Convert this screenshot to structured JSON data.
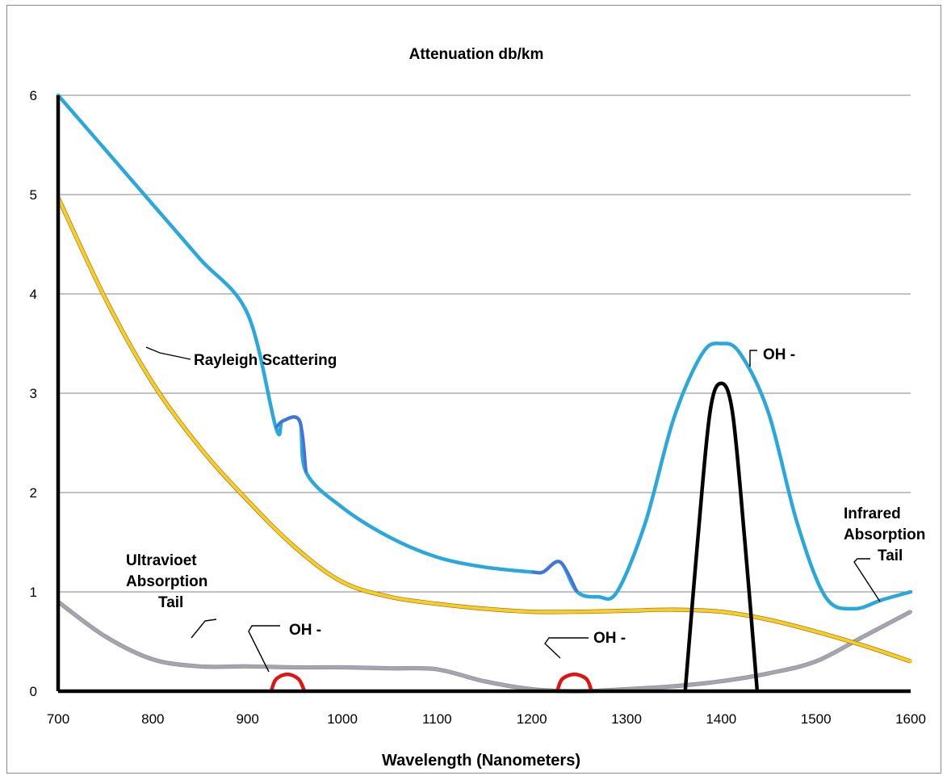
{
  "chart_data": {
    "type": "line",
    "title": "Attenuation db/km",
    "xlabel": "Wavelength (Nanometers)",
    "ylabel": "",
    "xlim": [
      700,
      1600
    ],
    "ylim": [
      0,
      6
    ],
    "x_ticks": [
      700,
      800,
      900,
      1000,
      1100,
      1200,
      1300,
      1400,
      1500,
      1600
    ],
    "y_ticks": [
      0,
      1,
      2,
      3,
      4,
      5,
      6
    ],
    "grid": "horizontal",
    "series": [
      {
        "key": "total",
        "color": "#2aa8dc",
        "points": [
          [
            700,
            6.0
          ],
          [
            750,
            5.45
          ],
          [
            800,
            4.9
          ],
          [
            850,
            4.35
          ],
          [
            900,
            3.8
          ],
          [
            930,
            2.65
          ],
          [
            937,
            2.72
          ],
          [
            955,
            2.72
          ],
          [
            962,
            2.2
          ],
          [
            1000,
            1.85
          ],
          [
            1050,
            1.55
          ],
          [
            1100,
            1.35
          ],
          [
            1150,
            1.25
          ],
          [
            1200,
            1.2
          ],
          [
            1212,
            1.2
          ],
          [
            1230,
            1.3
          ],
          [
            1248,
            1.0
          ],
          [
            1270,
            0.95
          ],
          [
            1290,
            1.0
          ],
          [
            1320,
            1.7
          ],
          [
            1350,
            2.75
          ],
          [
            1380,
            3.4
          ],
          [
            1400,
            3.5
          ],
          [
            1420,
            3.4
          ],
          [
            1450,
            2.8
          ],
          [
            1480,
            1.7
          ],
          [
            1510,
            0.95
          ],
          [
            1540,
            0.83
          ],
          [
            1570,
            0.92
          ],
          [
            1600,
            1.0
          ]
        ]
      },
      {
        "key": "rayleigh",
        "color": "#f2d21c",
        "points": [
          [
            700,
            4.97
          ],
          [
            750,
            3.95
          ],
          [
            800,
            3.1
          ],
          [
            850,
            2.45
          ],
          [
            900,
            1.92
          ],
          [
            950,
            1.45
          ],
          [
            1000,
            1.1
          ],
          [
            1050,
            0.95
          ],
          [
            1100,
            0.88
          ],
          [
            1150,
            0.83
          ],
          [
            1200,
            0.8
          ],
          [
            1250,
            0.8
          ],
          [
            1300,
            0.81
          ],
          [
            1350,
            0.82
          ],
          [
            1400,
            0.8
          ],
          [
            1450,
            0.72
          ],
          [
            1500,
            0.6
          ],
          [
            1550,
            0.46
          ],
          [
            1600,
            0.3
          ]
        ]
      },
      {
        "key": "uv_ir",
        "color": "#a6a6a6",
        "points": [
          [
            700,
            0.9
          ],
          [
            750,
            0.55
          ],
          [
            800,
            0.32
          ],
          [
            850,
            0.25
          ],
          [
            900,
            0.25
          ],
          [
            950,
            0.24
          ],
          [
            1000,
            0.24
          ],
          [
            1050,
            0.23
          ],
          [
            1100,
            0.22
          ],
          [
            1150,
            0.1
          ],
          [
            1200,
            0.02
          ],
          [
            1250,
            0.0
          ],
          [
            1300,
            0.02
          ],
          [
            1350,
            0.05
          ],
          [
            1400,
            0.1
          ],
          [
            1450,
            0.18
          ],
          [
            1500,
            0.3
          ],
          [
            1550,
            0.55
          ],
          [
            1600,
            0.8
          ]
        ]
      },
      {
        "key": "oh_peak_1400",
        "color": "#000000",
        "points": [
          [
            1362,
            0.0
          ],
          [
            1375,
            1.5
          ],
          [
            1388,
            2.8
          ],
          [
            1400,
            3.1
          ],
          [
            1412,
            2.8
          ],
          [
            1425,
            1.5
          ],
          [
            1438,
            0.0
          ]
        ]
      },
      {
        "key": "oh_bump_940",
        "color": "#e01414",
        "points": [
          [
            925,
            0.0
          ],
          [
            930,
            0.12
          ],
          [
            942,
            0.17
          ],
          [
            954,
            0.12
          ],
          [
            960,
            0.0
          ]
        ]
      },
      {
        "key": "oh_bump_1245",
        "color": "#e01414",
        "points": [
          [
            1227,
            0.0
          ],
          [
            1232,
            0.12
          ],
          [
            1245,
            0.17
          ],
          [
            1258,
            0.12
          ],
          [
            1263,
            0.0
          ]
        ]
      }
    ],
    "annotations": [
      {
        "text": "Rayleigh Scattering",
        "lines": [
          "Rayleigh Scattering"
        ]
      },
      {
        "text": "OH -",
        "lines": [
          "OH -"
        ],
        "near": 1400
      },
      {
        "text": "Infrared Absorption Tail",
        "lines": [
          "Infrared",
          "Absorption",
          "Tail"
        ]
      },
      {
        "text": "Ultravioet Absorption Tail",
        "lines": [
          "Ultravioet",
          "Absorption",
          "Tail"
        ]
      },
      {
        "text": "OH -",
        "lines": [
          "OH -"
        ],
        "near": 940
      },
      {
        "text": "OH -",
        "lines": [
          "OH -"
        ],
        "near": 1245
      }
    ]
  }
}
